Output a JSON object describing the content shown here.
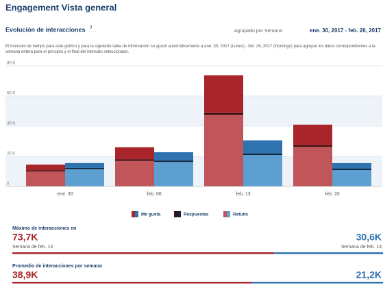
{
  "header": {
    "title": "Engagement Vista general"
  },
  "chart_data": {
    "type": "grouped_stacked_bar",
    "title": "Evolución de interacciones",
    "title_note": "3",
    "group_label": "Agrupado por Semana",
    "date_range": "ene. 30, 2017 - feb. 26, 2017",
    "info": "El intervalo de tiempo para este gráfico y para la siguiente tabla de información se ajustó automáticamente a ene. 30, 2017 (Lunes) - feb. 26, 2017 (Domingo) para agrupar los datos correspondientes a la semana entera para el principio y el final del intervalo seleccionado.",
    "categories": [
      "ene. 30",
      "feb. 06",
      "feb. 13",
      "feb. 20"
    ],
    "ylim": [
      0,
      80000
    ],
    "yticks": [
      0,
      {
        "value": 20000,
        "label": "20 K"
      },
      {
        "value": 40000,
        "label": "40 K"
      },
      {
        "value": 60000,
        "label": "60 K"
      },
      {
        "value": 80000,
        "label": "80 K"
      }
    ],
    "series": [
      {
        "name": "Retuits",
        "color": "#c0555a",
        "color2": "#5d9fd0",
        "values": [
          10000,
          17000,
          47500,
          26300
        ],
        "values2": [
          11500,
          16300,
          20900,
          10900
        ]
      },
      {
        "name": "Respuestas",
        "color": "#3a1010",
        "color2": "#10243a",
        "values": [
          800,
          1000,
          1200,
          1000
        ],
        "values2": [
          800,
          900,
          1000,
          900
        ]
      },
      {
        "name": "Me gusta",
        "color": "#a8262b",
        "color2": "#2f72b0",
        "values": [
          3700,
          8000,
          25000,
          13700
        ],
        "values2": [
          3200,
          5500,
          8700,
          3700
        ]
      }
    ]
  },
  "summary": [
    {
      "label": "Máximo de interacciones en",
      "left": {
        "value": 73700,
        "label": "73,7K",
        "note": "Semana de feb. 13"
      },
      "right": {
        "value": 30600,
        "label": "30,6K",
        "note": "Semana de feb. 13"
      }
    },
    {
      "label": "Promedio de interacciones por semana",
      "left": {
        "value": 38900,
        "label": "38,9K"
      },
      "right": {
        "value": 21200,
        "label": "21,2K"
      }
    }
  ]
}
